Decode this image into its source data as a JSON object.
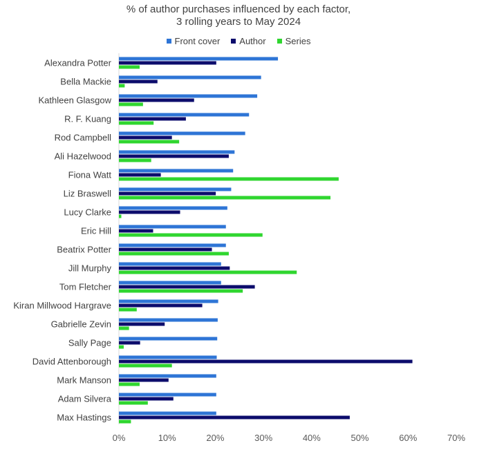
{
  "chart_data": {
    "type": "bar",
    "orientation": "horizontal",
    "title": "% of author purchases influenced by each factor,",
    "subtitle": "3 rolling years to May 2024",
    "xlabel": "",
    "ylabel": "",
    "xlim": [
      0,
      70
    ],
    "x_ticks": [
      "0%",
      "10%",
      "20%",
      "30%",
      "40%",
      "50%",
      "60%",
      "70%"
    ],
    "grid": false,
    "legend_position": "top",
    "categories": [
      "Alexandra Potter",
      "Bella Mackie",
      "Kathleen Glasgow",
      "R. F. Kuang",
      "Rod Campbell",
      "Ali Hazelwood",
      "Fiona Watt",
      "Liz Braswell",
      "Lucy Clarke",
      "Eric Hill",
      "Beatrix Potter",
      "Jill Murphy",
      "Tom Fletcher",
      "Kiran Millwood Hargrave",
      "Gabrielle Zevin",
      "Sally Page",
      "David Attenborough",
      "Mark Manson",
      "Adam Silvera",
      "Max Hastings"
    ],
    "series": [
      {
        "name": "Front cover",
        "color": "#2e75d6",
        "values": [
          33,
          29.5,
          28.7,
          27,
          26.2,
          24,
          23.7,
          23.3,
          22.5,
          22.2,
          22.2,
          21.2,
          21.2,
          20.6,
          20.5,
          20.4,
          20.3,
          20.2,
          20.2,
          20.2
        ]
      },
      {
        "name": "Author",
        "color": "#0c0c6c",
        "values": [
          20.2,
          8,
          15.6,
          13.9,
          11,
          22.8,
          8.7,
          20.1,
          12.7,
          7.1,
          19.3,
          23,
          28.2,
          17.3,
          9.5,
          4.4,
          60.9,
          10.3,
          11.3,
          47.9
        ]
      },
      {
        "name": "Series",
        "color": "#2fd62f",
        "values": [
          4.3,
          1.2,
          5,
          7.2,
          12.5,
          6.7,
          45.6,
          43.9,
          0.5,
          29.8,
          22.8,
          36.9,
          25.7,
          3.7,
          2.1,
          1,
          11,
          4.3,
          6,
          2.5
        ]
      }
    ]
  }
}
